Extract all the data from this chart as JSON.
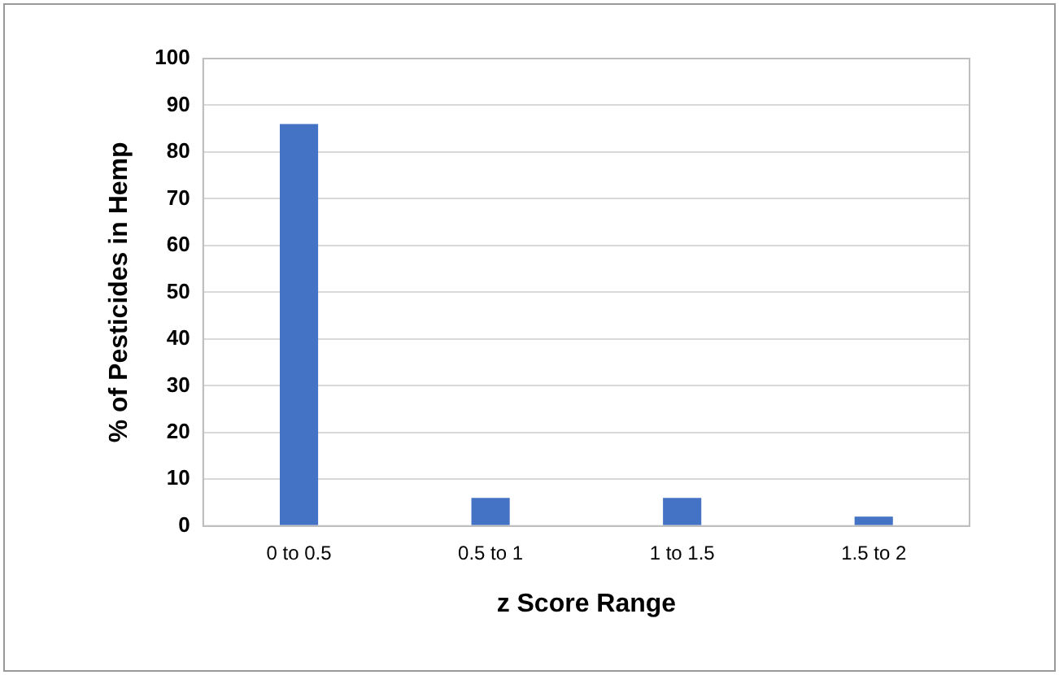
{
  "chart_data": {
    "type": "bar",
    "xlabel": "z Score Range",
    "ylabel": "% of Pesticides in Hemp",
    "categories": [
      "0 to 0.5",
      "0.5 to 1",
      "1 to 1.5",
      "1.5 to 2"
    ],
    "values": [
      86,
      6,
      6,
      2
    ],
    "color": "#4472c4",
    "ylim": [
      0,
      100
    ],
    "yticks": [
      0,
      10,
      20,
      30,
      40,
      50,
      60,
      70,
      80,
      90,
      100
    ],
    "grid": "y"
  }
}
